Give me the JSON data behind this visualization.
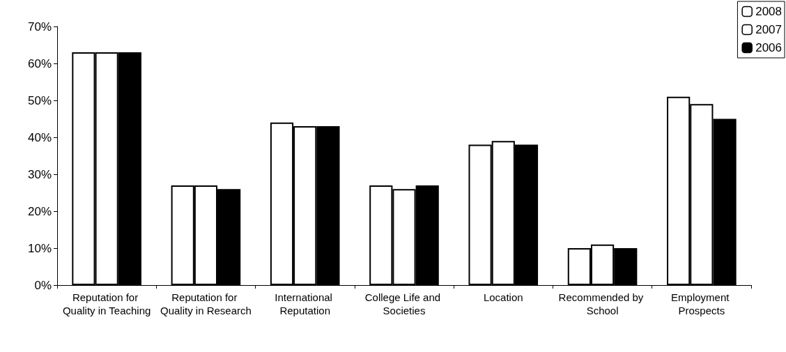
{
  "chart_data": {
    "type": "bar",
    "categories": [
      "Reputation for Quality in Teaching",
      "Reputation for Quality in Research",
      "International Reputation",
      "College Life and Societies",
      "Location",
      "Recommended by School",
      "Employment Prospects"
    ],
    "series": [
      {
        "name": "2008",
        "color": "#ffffff",
        "values": [
          63,
          27,
          44,
          27,
          38,
          10,
          51
        ]
      },
      {
        "name": "2007",
        "color": "#ffffff",
        "values": [
          63,
          27,
          43,
          26,
          39,
          11,
          49
        ]
      },
      {
        "name": "2006",
        "color": "#000000",
        "values": [
          63,
          26,
          43,
          27,
          38,
          10,
          45
        ]
      }
    ],
    "ylim": [
      0,
      70
    ],
    "yticks": [
      {
        "value": 0,
        "label": "0%"
      },
      {
        "value": 10,
        "label": "10%"
      },
      {
        "value": 20,
        "label": "20%"
      },
      {
        "value": 30,
        "label": "30%"
      },
      {
        "value": 40,
        "label": "40%"
      },
      {
        "value": 50,
        "label": "50%"
      },
      {
        "value": 60,
        "label": "60%"
      },
      {
        "value": 70,
        "label": "70%"
      }
    ],
    "grid": false,
    "legend": "top right"
  }
}
